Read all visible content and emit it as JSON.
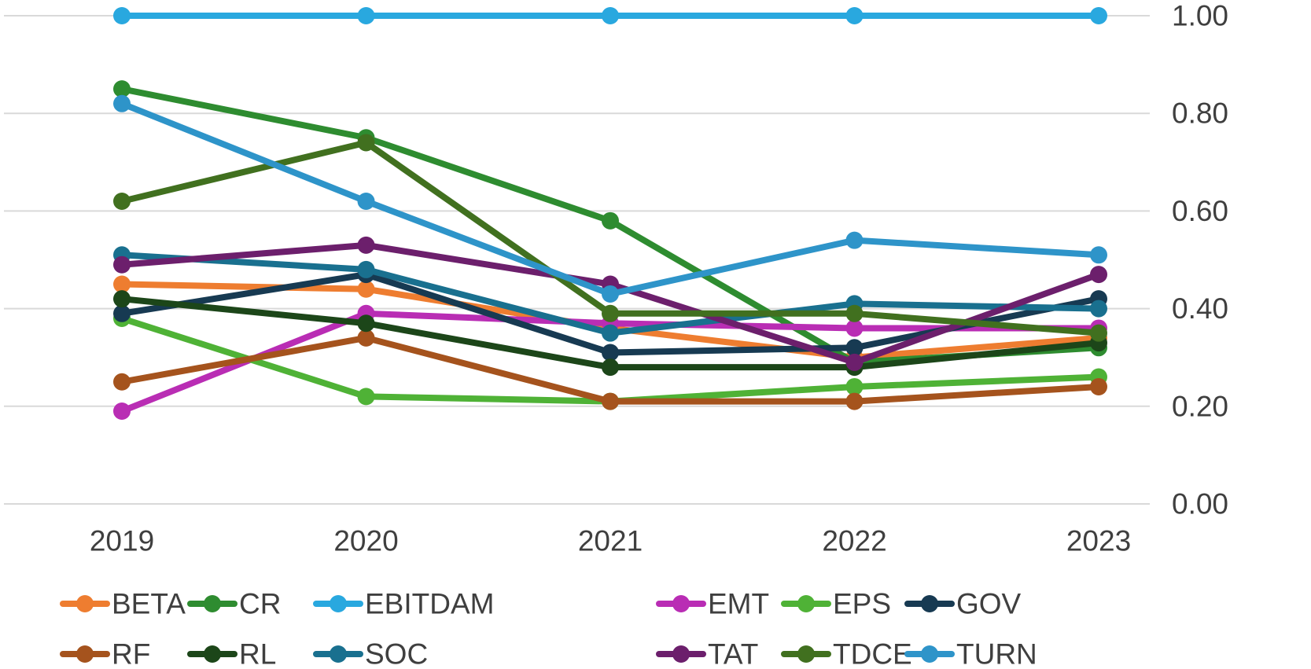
{
  "chart_data": {
    "type": "line",
    "title": "",
    "x_categories": [
      "2019",
      "2020",
      "2021",
      "2022",
      "2023"
    ],
    "y_axis": {
      "position": "right",
      "min": 0.0,
      "max": 1.0,
      "tick_labels": [
        "1.00",
        "0.80",
        "0.60",
        "0.40",
        "0.20",
        "0.00"
      ],
      "tick_values": [
        1.0,
        0.8,
        0.6,
        0.4,
        0.2,
        0.0
      ]
    },
    "grid": "horizontal-only",
    "legend_position": "bottom",
    "legend_rows": [
      [
        "BETA",
        "CR",
        "EBITDAM",
        "EMT",
        "EPS",
        "GOV"
      ],
      [
        "RF",
        "RL",
        "SOC",
        "TAT",
        "TDCE",
        "TURN"
      ]
    ],
    "series": [
      {
        "name": "BETA",
        "color": "#EE7D30",
        "values": [
          0.45,
          0.44,
          0.36,
          0.3,
          0.34
        ]
      },
      {
        "name": "CR",
        "color": "#2E8C30",
        "values": [
          0.85,
          0.75,
          0.58,
          0.29,
          0.32
        ]
      },
      {
        "name": "EBITDAM",
        "color": "#29A8DF",
        "values": [
          1.0,
          1.0,
          1.0,
          1.0,
          1.0
        ]
      },
      {
        "name": "EMT",
        "color": "#B92DB4",
        "values": [
          0.19,
          0.39,
          0.37,
          0.36,
          0.36
        ]
      },
      {
        "name": "EPS",
        "color": "#4FB236",
        "values": [
          0.38,
          0.22,
          0.21,
          0.24,
          0.26
        ]
      },
      {
        "name": "GOV",
        "color": "#173A52",
        "values": [
          0.39,
          0.47,
          0.31,
          0.32,
          0.42
        ]
      },
      {
        "name": "RF",
        "color": "#A5531D",
        "values": [
          0.25,
          0.34,
          0.21,
          0.21,
          0.24
        ]
      },
      {
        "name": "RL",
        "color": "#1C4619",
        "values": [
          0.42,
          0.37,
          0.28,
          0.28,
          0.33
        ]
      },
      {
        "name": "SOC",
        "color": "#19708F",
        "values": [
          0.51,
          0.48,
          0.35,
          0.41,
          0.4
        ]
      },
      {
        "name": "TAT",
        "color": "#6C1F6C",
        "values": [
          0.49,
          0.53,
          0.45,
          0.29,
          0.47
        ]
      },
      {
        "name": "TDCE",
        "color": "#41701F",
        "values": [
          0.62,
          0.74,
          0.39,
          0.39,
          0.35
        ]
      },
      {
        "name": "TURN",
        "color": "#2E94C9",
        "values": [
          0.82,
          0.62,
          0.43,
          0.54,
          0.51
        ]
      }
    ]
  },
  "style": {
    "background": "#FFFFFF",
    "text_color": "#3F3F3F",
    "grid_color": "#D9D9D9"
  }
}
